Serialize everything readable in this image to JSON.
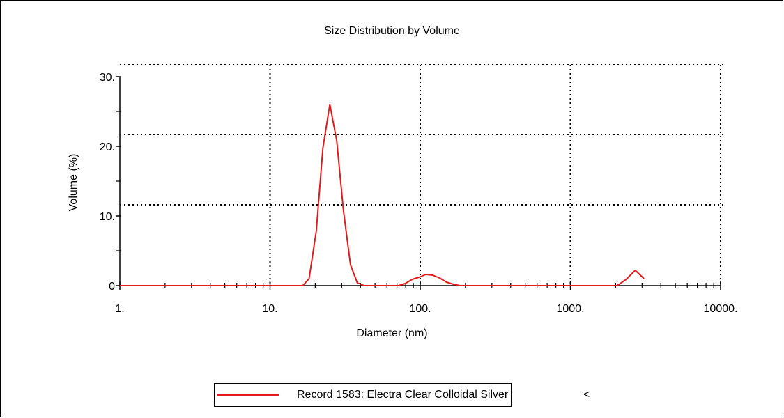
{
  "chart_data": {
    "type": "line",
    "title": "Size Distribution by Volume",
    "xlabel": "Diameter (nm)",
    "ylabel": "Volume (%)",
    "x_scale": "log",
    "xlim": [
      1,
      10000
    ],
    "ylim": [
      0,
      30
    ],
    "x_ticks": [
      {
        "value": 1,
        "label": "1."
      },
      {
        "value": 10,
        "label": "10."
      },
      {
        "value": 100,
        "label": "100."
      },
      {
        "value": 1000,
        "label": "1000."
      },
      {
        "value": 10000,
        "label": "10000."
      }
    ],
    "y_ticks": [
      {
        "value": 0,
        "label": "0"
      },
      {
        "value": 10,
        "label": "10."
      },
      {
        "value": 20,
        "label": "20."
      },
      {
        "value": 30,
        "label": "30."
      }
    ],
    "grid": true,
    "legend_position": "bottom",
    "series": [
      {
        "name": "Record 1583: Electra Clear Colloidal Silver",
        "color": "#e41a1c",
        "x": [
          1,
          5,
          10,
          16.5,
          18.2,
          20.3,
          22.5,
          25.0,
          27.8,
          30.8,
          34.3,
          38.1,
          42.3,
          47.0,
          52.2,
          58.0,
          64.4,
          71.6,
          79.5,
          88.3,
          98.1,
          109.0,
          121.1,
          134.5,
          149.4,
          165.9,
          184.3,
          204.7,
          300,
          1000,
          1800,
          2050,
          2350,
          2700,
          3090
        ],
        "y": [
          0,
          0,
          0,
          0,
          1.0,
          7.8,
          19.8,
          26.0,
          20.8,
          10.8,
          3.0,
          0.4,
          0,
          0,
          0,
          0,
          0,
          0,
          0.3,
          0.9,
          1.2,
          1.6,
          1.5,
          1.1,
          0.5,
          0.2,
          0,
          0,
          0,
          0,
          0,
          0,
          0.9,
          2.2,
          1.0
        ]
      }
    ]
  },
  "legend": {
    "label": "Record 1583: Electra Clear Colloidal Silver",
    "trailing_mark": "<"
  }
}
